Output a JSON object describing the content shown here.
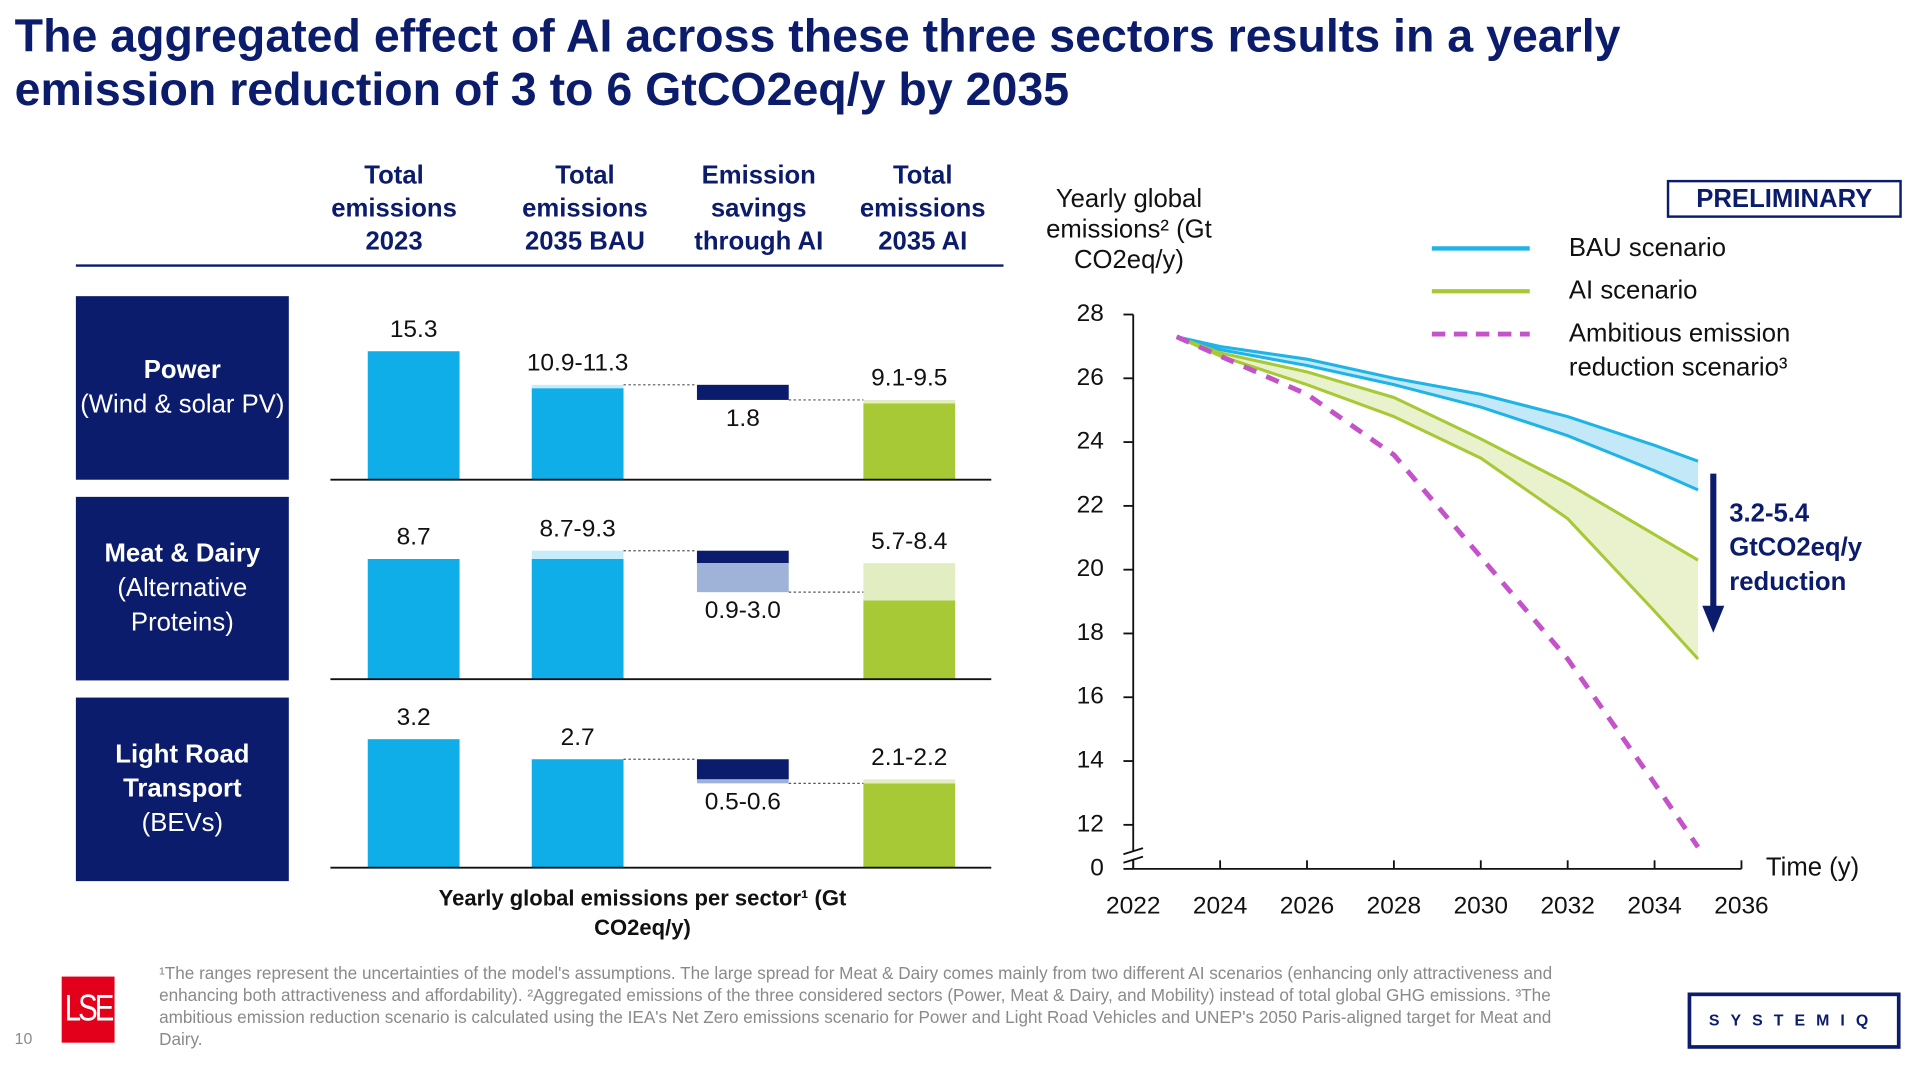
{
  "title": "The aggregated effect of AI across these three sectors results in a yearly emission reduction of 3 to 6 GtCO2eq/y by 2035",
  "badge": "PRELIMINARY",
  "footnote": "¹The ranges represent the uncertainties of the model's assumptions. The large spread for Meat & Dairy comes mainly from two different AI scenarios (enhancing only attractiveness and enhancing both attractiveness and affordability). ²Aggregated emissions of the three considered sectors (Power, Meat & Dairy, and Mobility) instead of total global GHG emissions. ³The ambitious emission reduction scenario is calculated using the IEA's Net Zero emissions scenario for Power and Light Road Vehicles and UNEP's 2050 Paris-aligned target for Meat and Dairy.",
  "page_number": "10",
  "logos": [
    "LSE",
    "SYSTEMIQ"
  ],
  "chart_data": [
    {
      "type": "waterfall",
      "columns": [
        "Total emissions 2023",
        "Total emissions 2035 BAU",
        "Emission savings through AI",
        "Total emissions 2035 AI"
      ],
      "x_label": "Yearly global emissions per sector¹ (Gt CO2eq/y)",
      "colors": [
        "#10aee8",
        "#10aee8",
        "#0c1c6c",
        "#a6c935"
      ],
      "range_colors": [
        "#c6ecfa",
        "#c6ecfa",
        "#9fb3d8",
        "#e3edc2"
      ],
      "sectors": [
        {
          "name": "Power",
          "detail": "(Wind & solar PV)",
          "values": [
            15.3,
            {
              "low": 10.9,
              "high": 11.3,
              "label": "10.9-11.3"
            },
            1.8,
            {
              "low": 9.1,
              "high": 9.5,
              "label": "9.1-9.5"
            }
          ]
        },
        {
          "name": "Meat & Dairy",
          "detail": "(Alternative Proteins)",
          "values": [
            8.7,
            {
              "low": 8.7,
              "high": 9.3,
              "label": "8.7-9.3"
            },
            {
              "low": 0.9,
              "high": 3.0,
              "label": "0.9-3.0"
            },
            {
              "low": 5.7,
              "high": 8.4,
              "label": "5.7-8.4"
            }
          ]
        },
        {
          "name": "Light Road Transport",
          "detail": "(BEVs)",
          "values": [
            3.2,
            2.7,
            {
              "low": 0.5,
              "high": 0.6,
              "label": "0.5-0.6"
            },
            {
              "low": 2.1,
              "high": 2.2,
              "label": "2.1-2.2"
            }
          ]
        }
      ]
    },
    {
      "type": "line",
      "y_label": "Yearly global emissions² (Gt CO2eq/y)",
      "x_label": "Time (y)",
      "x": [
        2023,
        2024,
        2026,
        2028,
        2030,
        2032,
        2034,
        2035
      ],
      "xlim": [
        2022,
        2036
      ],
      "xticks": [
        2022,
        2024,
        2026,
        2028,
        2030,
        2032,
        2034,
        2036
      ],
      "ylim": [
        0,
        28
      ],
      "y_break": [
        0,
        12
      ],
      "yticks": [
        0,
        12,
        14,
        16,
        18,
        20,
        22,
        24,
        26,
        28
      ],
      "legend": "upper right",
      "series": [
        {
          "name": "BAU scenario",
          "color": "#1eb4e6",
          "fill": "#c3e9f8",
          "values": [
            27.3,
            27.0,
            26.6,
            26.0,
            25.5,
            24.8,
            23.9,
            23.4
          ],
          "lower": [
            27.3,
            26.9,
            26.4,
            25.8,
            25.1,
            24.2,
            23.1,
            22.5
          ]
        },
        {
          "name": "AI scenario",
          "color": "#a6c935",
          "fill": "#eaf1cd",
          "values": [
            27.3,
            26.8,
            26.2,
            25.4,
            24.1,
            22.7,
            21.1,
            20.3
          ],
          "lower": [
            27.3,
            26.7,
            25.8,
            24.8,
            23.5,
            21.6,
            18.7,
            17.2
          ]
        },
        {
          "name": "Ambitious emission reduction scenario³",
          "color": "#c452c8",
          "style": "dashed",
          "values": [
            27.3,
            26.7,
            25.5,
            23.6,
            20.4,
            17.2,
            13.3,
            11.3
          ]
        }
      ],
      "annotation": "3.2-5.4 GtCO2eq/y reduction",
      "annotation_color": "#0c1c6c"
    }
  ]
}
